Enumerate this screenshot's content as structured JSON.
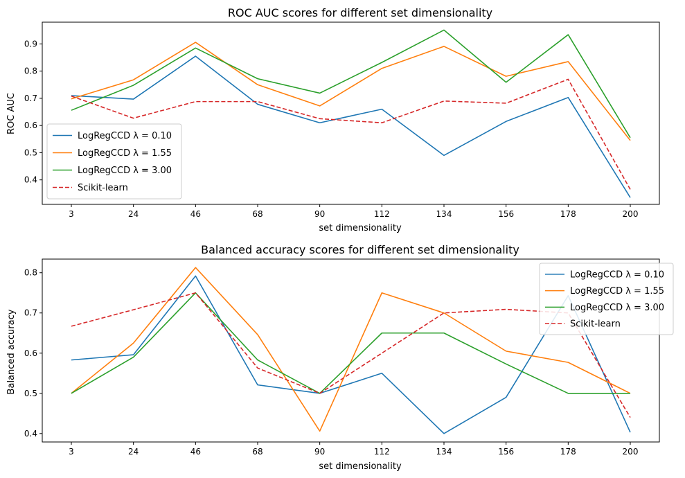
{
  "chart_data": [
    {
      "type": "line",
      "title": "ROC AUC scores for different set dimensionality",
      "xlabel": "set dimensionality",
      "ylabel": "ROC AUC",
      "categories": [
        "3",
        "24",
        "46",
        "68",
        "90",
        "112",
        "134",
        "156",
        "178",
        "200"
      ],
      "ylim": [
        0.31,
        0.98
      ],
      "yticks": [
        "0.4",
        "0.5",
        "0.6",
        "0.7",
        "0.8",
        "0.9"
      ],
      "legend_position": "lower-left",
      "series": [
        {
          "name": "LogRegCCD λ = 0.10",
          "color": "#1f77b4",
          "dash": "solid",
          "values": [
            0.71,
            0.697,
            0.855,
            0.678,
            0.61,
            0.66,
            0.49,
            0.615,
            0.703,
            0.335
          ]
        },
        {
          "name": "LogRegCCD λ = 1.55",
          "color": "#ff7f0e",
          "dash": "solid",
          "values": [
            0.698,
            0.768,
            0.906,
            0.75,
            0.672,
            0.81,
            0.891,
            0.781,
            0.835,
            0.545
          ]
        },
        {
          "name": "LogRegCCD λ = 3.00",
          "color": "#2ca02c",
          "dash": "solid",
          "values": [
            0.656,
            0.748,
            0.885,
            0.772,
            0.719,
            0.832,
            0.951,
            0.759,
            0.934,
            0.555
          ]
        },
        {
          "name": "Scikit-learn",
          "color": "#d62728",
          "dash": "dashed",
          "values": [
            0.708,
            0.627,
            0.688,
            0.688,
            0.625,
            0.61,
            0.69,
            0.682,
            0.77,
            0.365
          ]
        }
      ]
    },
    {
      "type": "line",
      "title": "Balanced accuracy scores for different set dimensionality",
      "xlabel": "set dimensionality",
      "ylabel": "Balanced accuracy",
      "categories": [
        "3",
        "24",
        "46",
        "68",
        "90",
        "112",
        "134",
        "156",
        "178",
        "200"
      ],
      "ylim": [
        0.379,
        0.834
      ],
      "yticks": [
        "0.4",
        "0.5",
        "0.6",
        "0.7",
        "0.8"
      ],
      "legend_position": "upper-right",
      "series": [
        {
          "name": "LogRegCCD λ = 0.10",
          "color": "#1f77b4",
          "dash": "solid",
          "values": [
            0.583,
            0.596,
            0.792,
            0.521,
            0.5,
            0.55,
            0.4,
            0.49,
            0.743,
            0.403
          ]
        },
        {
          "name": "LogRegCCD λ = 1.55",
          "color": "#ff7f0e",
          "dash": "solid",
          "values": [
            0.5,
            0.625,
            0.813,
            0.646,
            0.406,
            0.75,
            0.7,
            0.605,
            0.577,
            0.5
          ]
        },
        {
          "name": "LogRegCCD λ = 3.00",
          "color": "#2ca02c",
          "dash": "solid",
          "values": [
            0.5,
            0.59,
            0.75,
            0.583,
            0.5,
            0.65,
            0.65,
            0.573,
            0.5,
            0.5
          ]
        },
        {
          "name": "Scikit-learn",
          "color": "#d62728",
          "dash": "dashed",
          "values": [
            0.667,
            0.708,
            0.75,
            0.563,
            0.5,
            0.6,
            0.7,
            0.709,
            0.7,
            0.44
          ]
        }
      ]
    }
  ]
}
